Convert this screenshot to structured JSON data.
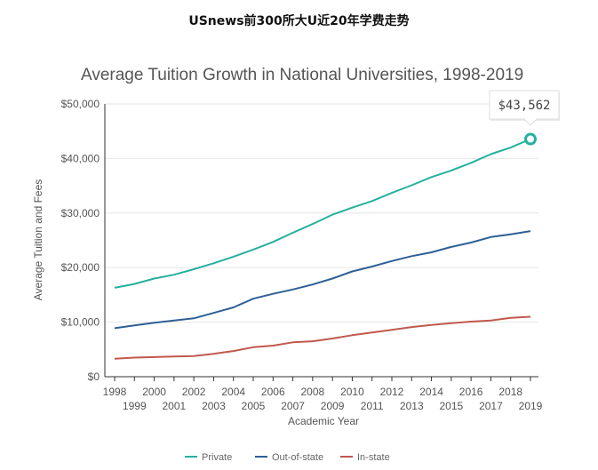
{
  "header": {
    "title": "USnews前300所大U近20年学费走势"
  },
  "colors": {
    "private": "#26b09e",
    "out_of_state": "#2e5f95",
    "in_state": "#c0594e",
    "grid": "#e6e6e6",
    "axis": "#333333"
  },
  "chart_data": {
    "type": "line",
    "title": "Average Tuition Growth in National Universities, 1998-2019",
    "xlabel": "Academic Year",
    "ylabel": "Average Tuition and Fees",
    "ylim": [
      0,
      50000
    ],
    "yticks": [
      "$0",
      "$10,000",
      "$20,000",
      "$30,000",
      "$40,000",
      "$50,000"
    ],
    "x": [
      "1998",
      "1999",
      "2000",
      "2001",
      "2002",
      "2003",
      "2004",
      "2005",
      "2006",
      "2007",
      "2008",
      "2009",
      "2010",
      "2011",
      "2012",
      "2013",
      "2014",
      "2015",
      "2016",
      "2017",
      "2018",
      "2019"
    ],
    "series": [
      {
        "name": "Private",
        "color": "#26b09e",
        "values": [
          16300,
          17000,
          18000,
          18700,
          19700,
          20800,
          22000,
          23300,
          24700,
          26400,
          28000,
          29700,
          31000,
          32200,
          33700,
          35100,
          36600,
          37800,
          39200,
          40800,
          42000,
          43562
        ]
      },
      {
        "name": "Out-of-state",
        "color": "#2e5f95",
        "values": [
          8900,
          9400,
          9900,
          10300,
          10700,
          11700,
          12700,
          14300,
          15200,
          16000,
          16900,
          18000,
          19300,
          20200,
          21200,
          22100,
          22800,
          23800,
          24600,
          25600,
          26100,
          26700
        ]
      },
      {
        "name": "In-state",
        "color": "#c0594e",
        "values": [
          3300,
          3500,
          3600,
          3700,
          3800,
          4200,
          4700,
          5400,
          5700,
          6300,
          6500,
          7000,
          7600,
          8100,
          8600,
          9100,
          9500,
          9800,
          10100,
          10300,
          10800,
          11000
        ]
      }
    ],
    "tooltip": {
      "label": "$43,562",
      "series": "Private",
      "x": "2019"
    },
    "grid": true,
    "legend_position": "bottom"
  }
}
